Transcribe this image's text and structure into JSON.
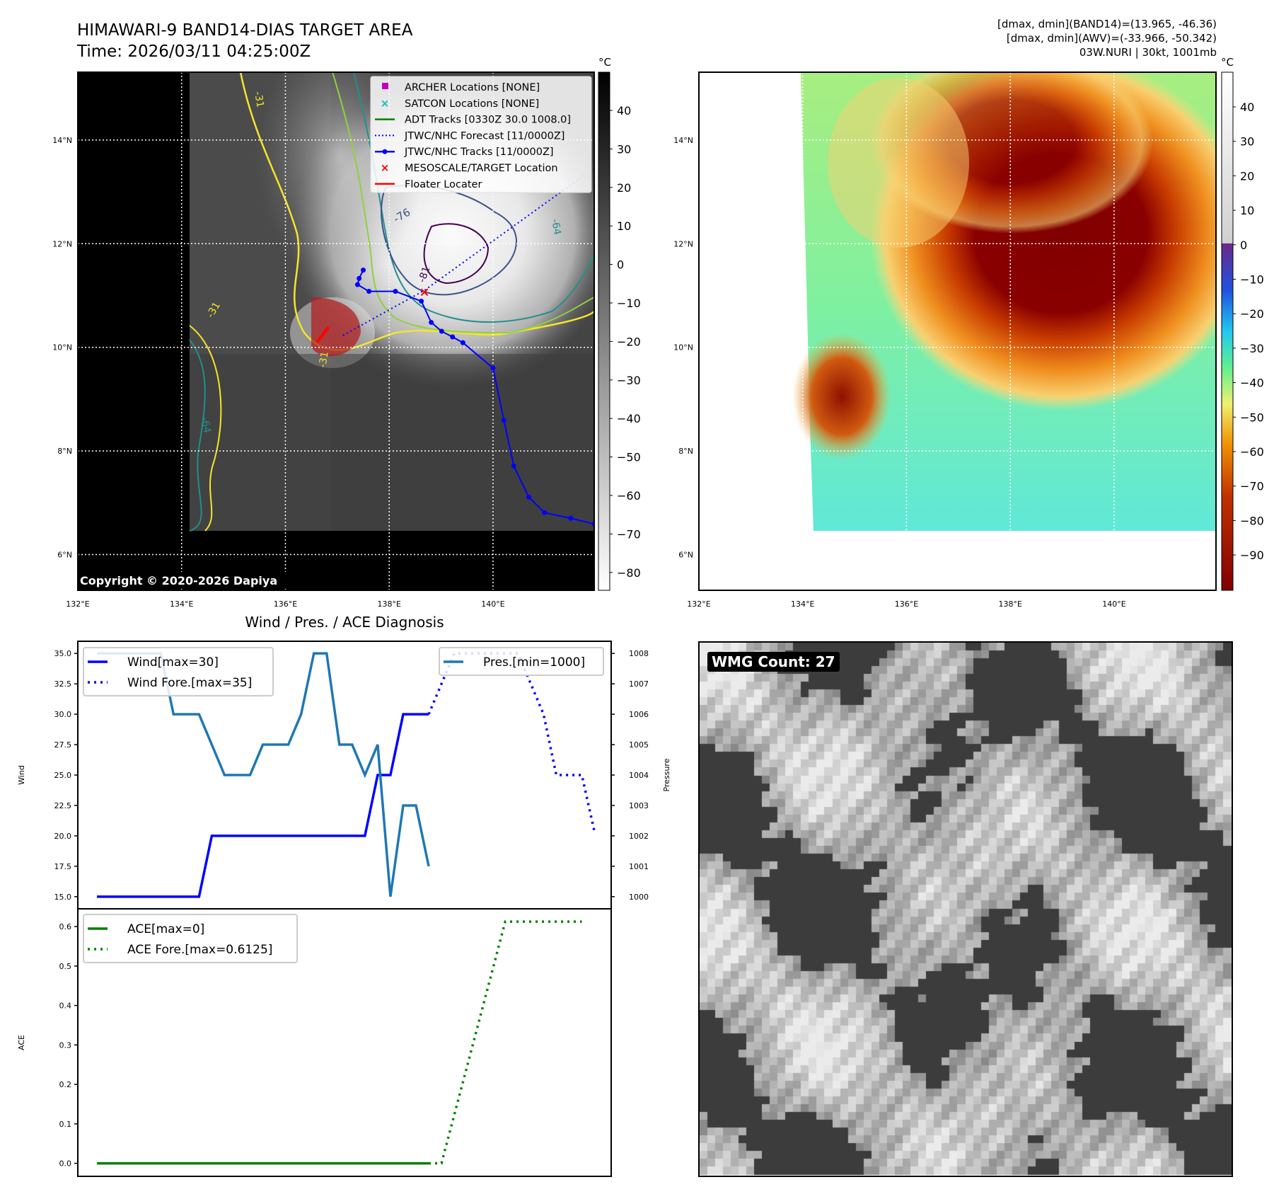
{
  "header": {
    "title": "HIMAWARI-9 BAND14-DIAS TARGET AREA",
    "time": "Time: 2026/03/11 04:25:00Z",
    "stats_band14": "[dmax, dmin](BAND14)=(13.965, -46.36)",
    "stats_awv": "[dmax, dmin](AWV)=(-33.966, -50.342)",
    "storm": "03W.NURI | 30kt, 1001mb"
  },
  "maps": {
    "lon_range": [
      132,
      141.95
    ],
    "lat_range": [
      5.31,
      15.31
    ],
    "lon_ticks": [
      {
        "v": 132,
        "label": "132°E"
      },
      {
        "v": 134,
        "label": "134°E"
      },
      {
        "v": 136,
        "label": "136°E"
      },
      {
        "v": 138,
        "label": "138°E"
      },
      {
        "v": 140,
        "label": "140°E"
      }
    ],
    "lat_ticks": [
      {
        "v": 14,
        "label": "14°N"
      },
      {
        "v": 12,
        "label": "12°N"
      },
      {
        "v": 10,
        "label": "10°N"
      },
      {
        "v": 8,
        "label": "8°N"
      },
      {
        "v": 6,
        "label": "6°N"
      }
    ],
    "copyright": "Copyright © 2020-2026 Dapiya",
    "contour_labels": [
      "-76",
      "-81",
      "-64",
      "-64",
      "-31",
      "-31",
      "-31"
    ],
    "left_colorbar": {
      "unit": "°C",
      "ticks": [
        "40",
        "30",
        "20",
        "10",
        "0",
        "−10",
        "−20",
        "−30",
        "−40",
        "−50",
        "−60",
        "−70",
        "−80"
      ]
    },
    "right_colorbar": {
      "unit": "°C",
      "ticks": [
        "40",
        "30",
        "20",
        "10",
        "0",
        "−10",
        "−20",
        "−30",
        "−40",
        "−50",
        "−60",
        "−70",
        "−80",
        "−90"
      ]
    },
    "legend": [
      {
        "label": "ARCHER Locations [NONE]",
        "icon": "magenta-square",
        "color": "#bf00bf"
      },
      {
        "label": "SATCON Locations [NONE]",
        "icon": "cyan-x",
        "color": "#00bfbf"
      },
      {
        "label": "ADT Tracks [0330Z 30.0 1008.0]",
        "icon": "green-line",
        "color": "#008000"
      },
      {
        "label": "JTWC/NHC Forecast [11/0000Z]",
        "icon": "blue-dotted-line",
        "color": "#0000ff"
      },
      {
        "label": "JTWC/NHC Tracks [11/0000Z]",
        "icon": "blue-line-dot",
        "color": "#0000ff"
      },
      {
        "label": "MESOSCALE/TARGET Location",
        "icon": "red-x",
        "color": "#ff0000"
      },
      {
        "label": "Floater Locater",
        "icon": "red-line",
        "color": "#ff0000"
      }
    ],
    "jtwc_track": [
      [
        137.5,
        11.49
      ],
      [
        137.42,
        11.33
      ],
      [
        137.39,
        11.21
      ],
      [
        137.61,
        11.08
      ],
      [
        138.12,
        11.08
      ],
      [
        138.62,
        10.89
      ],
      [
        138.81,
        10.48
      ],
      [
        139.01,
        10.31
      ],
      [
        139.22,
        10.2
      ],
      [
        139.42,
        10.09
      ],
      [
        140.0,
        9.6
      ],
      [
        140.21,
        8.59
      ],
      [
        140.4,
        7.71
      ],
      [
        140.69,
        7.11
      ],
      [
        140.99,
        6.81
      ],
      [
        141.5,
        6.7
      ],
      [
        141.95,
        6.59
      ]
    ],
    "jtwc_forecast": [
      [
        137.11,
        10.23
      ],
      [
        138.68,
        11.1
      ],
      [
        141.95,
        13.46
      ]
    ],
    "target": [
      138.68,
      11.07
    ],
    "floater": [
      [
        136.61,
        10.1
      ],
      [
        136.83,
        10.39
      ]
    ]
  },
  "wmg": {
    "label": "WMG Count: 27"
  },
  "chart_data": [
    {
      "type": "line",
      "title": "Wind / Pres. / ACE Diagnosis",
      "ylabel": "Wind",
      "y2label": "Pressure",
      "ylim": [
        14,
        36
      ],
      "y2lim": [
        999.6,
        1008.4
      ],
      "yticks": [
        "15.0",
        "17.5",
        "20.0",
        "22.5",
        "25.0",
        "27.5",
        "30.0",
        "32.5",
        "35.0"
      ],
      "y2ticks": [
        "1000",
        "1001",
        "1002",
        "1003",
        "1004",
        "1005",
        "1006",
        "1007",
        "1008"
      ],
      "xlim": [
        -1.5,
        40.3
      ],
      "series": [
        {
          "name": "Wind[max=30]",
          "style": "solid",
          "color": "#0000ff",
          "axis": "left",
          "x": [
            0,
            8,
            9,
            21,
            22,
            23,
            24,
            26
          ],
          "y": [
            15,
            15,
            20,
            20,
            25,
            25,
            30,
            30
          ]
        },
        {
          "name": "Wind Fore.[max=35]",
          "style": "dotted",
          "color": "#0000ff",
          "axis": "left",
          "x": [
            26,
            28,
            33,
            35,
            36,
            38,
            39
          ],
          "y": [
            30,
            35,
            35,
            30,
            25,
            25,
            20.3
          ]
        },
        {
          "name": "Pres.[min=1000]",
          "style": "solid",
          "color": "#1f77b4",
          "axis": "right",
          "x": [
            0,
            5,
            6,
            8,
            10,
            12,
            13,
            15,
            16,
            17,
            18,
            19,
            20,
            21,
            22,
            23,
            24,
            25,
            26
          ],
          "y": [
            1008,
            1008,
            1006,
            1006,
            1004,
            1004,
            1005,
            1005,
            1006,
            1008,
            1008,
            1005,
            1005,
            1004,
            1005,
            1000,
            1003,
            1003,
            1001
          ]
        }
      ]
    },
    {
      "type": "line",
      "ylabel": "ACE",
      "ylim": [
        -0.033,
        0.645
      ],
      "yticks": [
        "0.0",
        "0.1",
        "0.2",
        "0.3",
        "0.4",
        "0.5",
        "0.6"
      ],
      "xlim": [
        -1.5,
        40.3
      ],
      "series": [
        {
          "name": "ACE[max=0]",
          "style": "solid",
          "color": "#008000",
          "x": [
            0,
            26
          ],
          "y": [
            0,
            0
          ]
        },
        {
          "name": "ACE Fore.[max=0.6125]",
          "style": "dotted",
          "color": "#008000",
          "x": [
            26,
            27,
            32,
            38
          ],
          "y": [
            0,
            0,
            0.6125,
            0.6125
          ]
        }
      ]
    }
  ]
}
